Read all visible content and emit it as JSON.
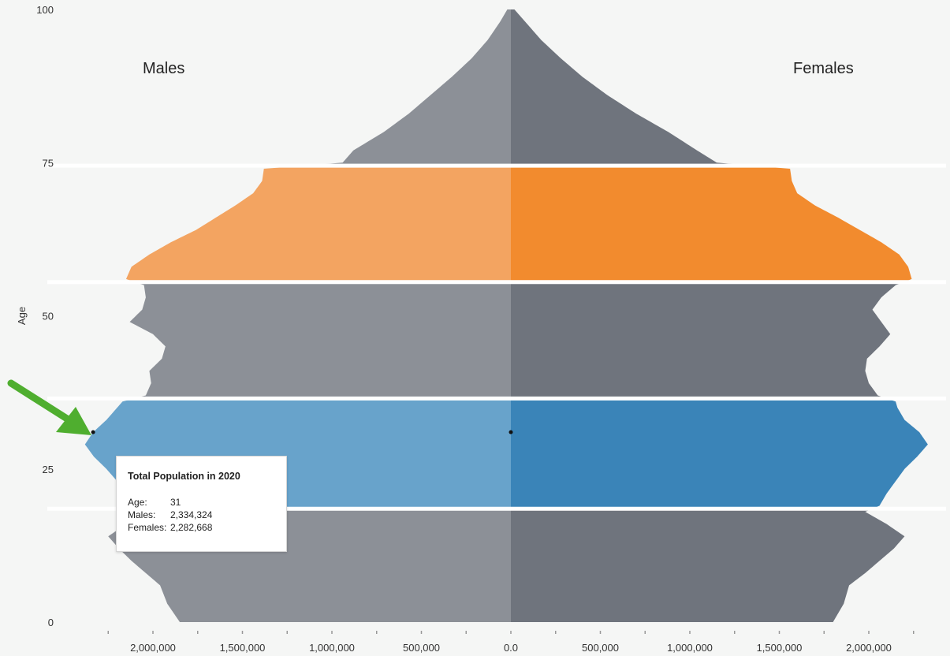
{
  "chart_data": {
    "type": "population-pyramid",
    "title": "",
    "xlabel": "",
    "ylabel": "Age",
    "left_label": "Males",
    "right_label": "Females",
    "ylim": [
      0,
      100
    ],
    "y_ticks": [
      0,
      25,
      50,
      75,
      100
    ],
    "x_ticks": [
      {
        "value": -2000000,
        "label": "2,000,000"
      },
      {
        "value": -1500000,
        "label": "1,500,000"
      },
      {
        "value": -1000000,
        "label": "1,000,000"
      },
      {
        "value": -500000,
        "label": "500,000"
      },
      {
        "value": 0,
        "label": "0.0"
      },
      {
        "value": 500000,
        "label": "500,000"
      },
      {
        "value": 1000000,
        "label": "1,000,000"
      },
      {
        "value": 1500000,
        "label": "1,500,000"
      },
      {
        "value": 2000000,
        "label": "2,000,000"
      }
    ],
    "xlim": [
      -2350000,
      2350000
    ],
    "highlight_bands": [
      {
        "age_from": 0,
        "age_to": 18,
        "color": "gray"
      },
      {
        "age_from": 19,
        "age_to": 36,
        "color": "blue"
      },
      {
        "age_from": 37,
        "age_to": 55,
        "color": "gray"
      },
      {
        "age_from": 56,
        "age_to": 74,
        "color": "orange"
      },
      {
        "age_from": 75,
        "age_to": 100,
        "color": "gray"
      }
    ],
    "colors": {
      "gray_male": "#8c9097",
      "gray_female": "#6f747d",
      "blue_male": "#68a3cb",
      "blue_female": "#3a84b8",
      "orange_male": "#f3a461",
      "orange_female": "#f28b2e",
      "separator": "#ffffff",
      "arrow": "#4fae2f"
    },
    "series": [
      {
        "name": "Males",
        "ages": [
          0,
          3,
          6,
          8,
          10,
          12,
          14,
          16,
          18,
          19,
          21,
          23,
          25,
          27,
          29,
          31,
          33,
          35,
          36,
          37,
          39,
          41,
          43,
          45,
          47,
          49,
          51,
          53,
          55,
          56,
          58,
          60,
          62,
          64,
          66,
          68,
          70,
          72,
          74,
          75,
          77,
          80,
          83,
          86,
          89,
          92,
          95,
          98,
          100
        ],
        "values": [
          1850000,
          1920000,
          1960000,
          2040000,
          2120000,
          2190000,
          2250000,
          2150000,
          2020000,
          2100000,
          2160000,
          2200000,
          2260000,
          2330000,
          2380000,
          2334324,
          2260000,
          2200000,
          2170000,
          2040000,
          2010000,
          2020000,
          1950000,
          1930000,
          2000000,
          2130000,
          2060000,
          2040000,
          2050000,
          2150000,
          2120000,
          2020000,
          1900000,
          1760000,
          1650000,
          1540000,
          1440000,
          1390000,
          1380000,
          940000,
          880000,
          710000,
          570000,
          450000,
          330000,
          220000,
          130000,
          60000,
          20000
        ]
      },
      {
        "name": "Females",
        "ages": [
          0,
          3,
          6,
          8,
          10,
          12,
          14,
          16,
          18,
          19,
          21,
          23,
          25,
          27,
          29,
          31,
          33,
          35,
          36,
          37,
          39,
          41,
          43,
          45,
          47,
          49,
          51,
          53,
          55,
          56,
          58,
          60,
          62,
          64,
          66,
          68,
          70,
          72,
          74,
          75,
          77,
          80,
          83,
          86,
          89,
          92,
          95,
          98,
          100
        ],
        "values": [
          1800000,
          1860000,
          1890000,
          1980000,
          2060000,
          2140000,
          2200000,
          2100000,
          1980000,
          2060000,
          2100000,
          2150000,
          2200000,
          2270000,
          2330000,
          2282668,
          2200000,
          2160000,
          2150000,
          2050000,
          2000000,
          1980000,
          1990000,
          2060000,
          2120000,
          2070000,
          2020000,
          2070000,
          2150000,
          2240000,
          2220000,
          2170000,
          2070000,
          1950000,
          1830000,
          1700000,
          1600000,
          1570000,
          1560000,
          1150000,
          1040000,
          880000,
          700000,
          540000,
          400000,
          280000,
          170000,
          80000,
          20000
        ]
      }
    ],
    "tooltip": {
      "title": "Total Population in 2020",
      "age_key": "Age:",
      "age_value": "31",
      "males_key": "Males:",
      "males_value": "2,334,324",
      "females_key": "Females:",
      "females_value": "2,282,668"
    }
  }
}
